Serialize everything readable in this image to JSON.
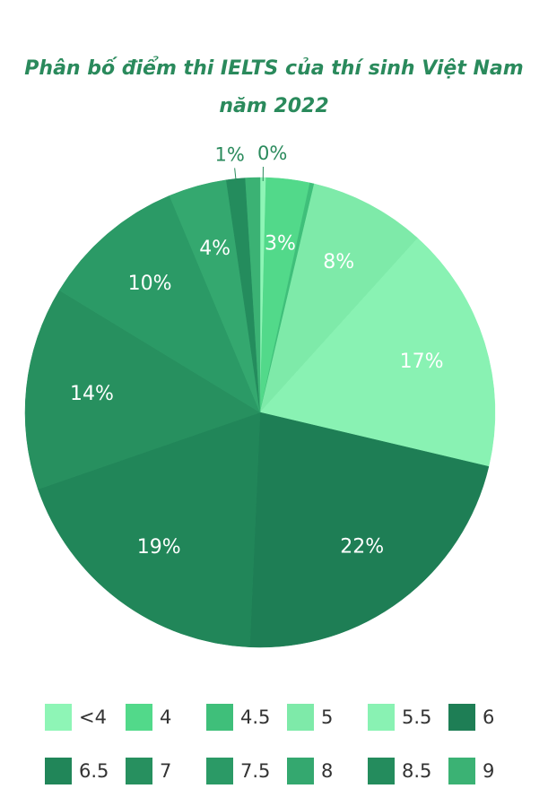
{
  "chart_data": {
    "type": "pie",
    "title": "Phân bố điểm thi IELTS của thí sinh Việt Nam năm 2022",
    "categories": [
      "<4",
      "4",
      "4.5",
      "5",
      "5.5",
      "6",
      "6.5",
      "7",
      "7.5",
      "8",
      "8.5",
      "9"
    ],
    "values": [
      0.4,
      3,
      0.3,
      8,
      17,
      22,
      19,
      14,
      10,
      4,
      1.3,
      1
    ],
    "value_labels": [
      "0%",
      "3%",
      null,
      "8%",
      "17%",
      "22%",
      "19%",
      "14%",
      "10%",
      "4%",
      "1%",
      null
    ],
    "colors": [
      "#8ef5b6",
      "#52d98a",
      "#3fbf7a",
      "#7eeaa9",
      "#89f2b3",
      "#1e7e55",
      "#218659",
      "#27905f",
      "#2b9a66",
      "#34a86f",
      "#248c5d",
      "#3bb274"
    ],
    "legend": "bottom"
  }
}
